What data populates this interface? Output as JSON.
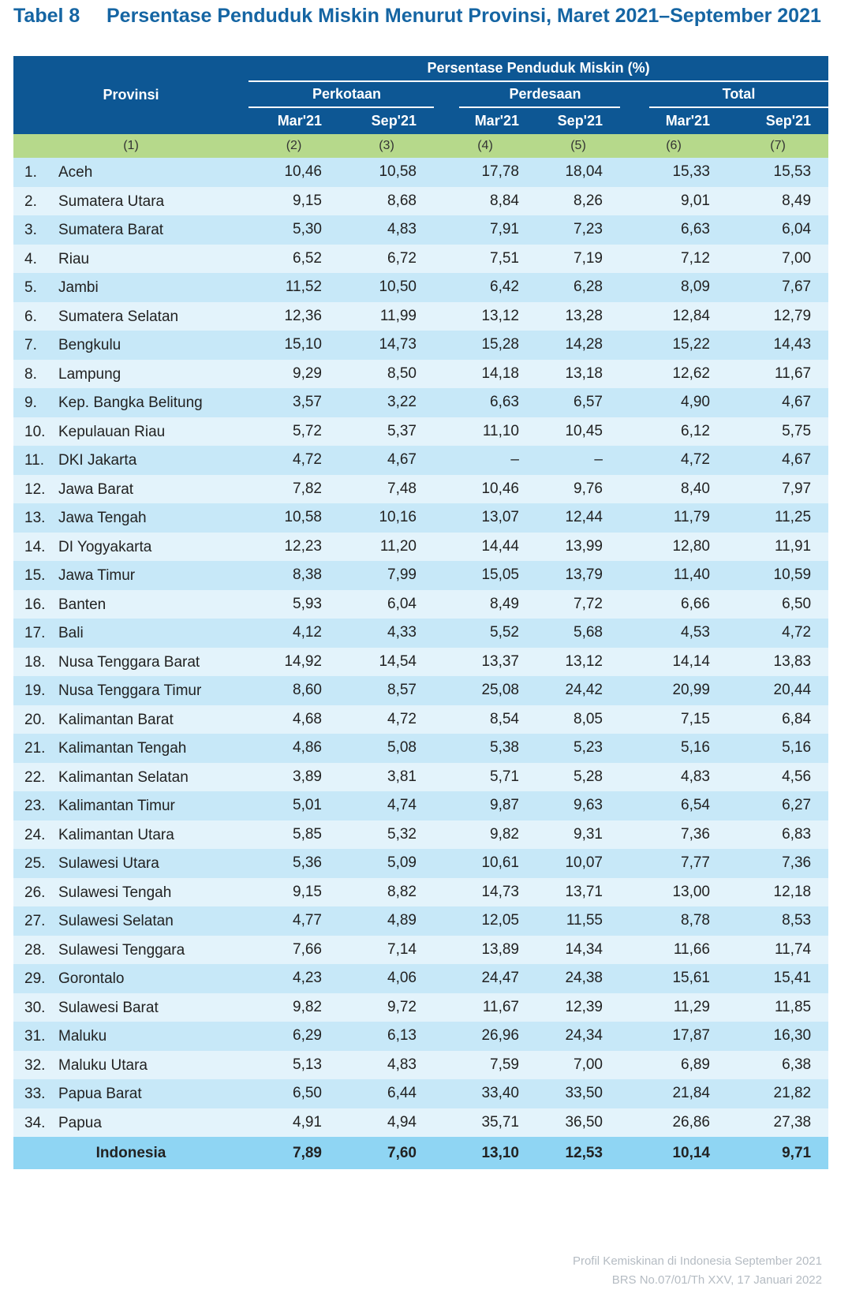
{
  "title": {
    "number": "Tabel 8",
    "text": "Persentase Penduduk Miskin Menurut Provinsi, Maret 2021–September 2021"
  },
  "header": {
    "provinsi": "Provinsi",
    "group": "Persentase Penduduk Miskin (%)",
    "sub": [
      "Perkotaan",
      "Perdesaan",
      "Total"
    ],
    "periods": [
      "Mar'21",
      "Sep'21",
      "Mar'21",
      "Sep'21",
      "Mar'21",
      "Sep'21"
    ],
    "col_numbers": [
      "(1)",
      "(2)",
      "(3)",
      "(4)",
      "(5)",
      "(6)",
      "(7)"
    ]
  },
  "rows": [
    {
      "no": "1.",
      "name": "Aceh",
      "v": [
        "10,46",
        "10,58",
        "17,78",
        "18,04",
        "15,33",
        "15,53"
      ]
    },
    {
      "no": "2.",
      "name": "Sumatera Utara",
      "v": [
        "9,15",
        "8,68",
        "8,84",
        "8,26",
        "9,01",
        "8,49"
      ]
    },
    {
      "no": "3.",
      "name": "Sumatera Barat",
      "v": [
        "5,30",
        "4,83",
        "7,91",
        "7,23",
        "6,63",
        "6,04"
      ]
    },
    {
      "no": "4.",
      "name": "Riau",
      "v": [
        "6,52",
        "6,72",
        "7,51",
        "7,19",
        "7,12",
        "7,00"
      ]
    },
    {
      "no": "5.",
      "name": "Jambi",
      "v": [
        "11,52",
        "10,50",
        "6,42",
        "6,28",
        "8,09",
        "7,67"
      ]
    },
    {
      "no": "6.",
      "name": "Sumatera Selatan",
      "v": [
        "12,36",
        "11,99",
        "13,12",
        "13,28",
        "12,84",
        "12,79"
      ]
    },
    {
      "no": "7.",
      "name": "Bengkulu",
      "v": [
        "15,10",
        "14,73",
        "15,28",
        "14,28",
        "15,22",
        "14,43"
      ]
    },
    {
      "no": "8.",
      "name": "Lampung",
      "v": [
        "9,29",
        "8,50",
        "14,18",
        "13,18",
        "12,62",
        "11,67"
      ]
    },
    {
      "no": "9.",
      "name": "Kep. Bangka Belitung",
      "v": [
        "3,57",
        "3,22",
        "6,63",
        "6,57",
        "4,90",
        "4,67"
      ]
    },
    {
      "no": "10.",
      "name": "Kepulauan Riau",
      "v": [
        "5,72",
        "5,37",
        "11,10",
        "10,45",
        "6,12",
        "5,75"
      ]
    },
    {
      "no": "11.",
      "name": "DKI Jakarta",
      "v": [
        "4,72",
        "4,67",
        "–",
        "–",
        "4,72",
        "4,67"
      ]
    },
    {
      "no": "12.",
      "name": "Jawa Barat",
      "v": [
        "7,82",
        "7,48",
        "10,46",
        "9,76",
        "8,40",
        "7,97"
      ]
    },
    {
      "no": "13.",
      "name": "Jawa Tengah",
      "v": [
        "10,58",
        "10,16",
        "13,07",
        "12,44",
        "11,79",
        "11,25"
      ]
    },
    {
      "no": "14.",
      "name": "DI Yogyakarta",
      "v": [
        "12,23",
        "11,20",
        "14,44",
        "13,99",
        "12,80",
        "11,91"
      ]
    },
    {
      "no": "15.",
      "name": "Jawa Timur",
      "v": [
        "8,38",
        "7,99",
        "15,05",
        "13,79",
        "11,40",
        "10,59"
      ]
    },
    {
      "no": "16.",
      "name": "Banten",
      "v": [
        "5,93",
        "6,04",
        "8,49",
        "7,72",
        "6,66",
        "6,50"
      ]
    },
    {
      "no": "17.",
      "name": "Bali",
      "v": [
        "4,12",
        "4,33",
        "5,52",
        "5,68",
        "4,53",
        "4,72"
      ]
    },
    {
      "no": "18.",
      "name": "Nusa Tenggara Barat",
      "v": [
        "14,92",
        "14,54",
        "13,37",
        "13,12",
        "14,14",
        "13,83"
      ]
    },
    {
      "no": "19.",
      "name": "Nusa Tenggara Timur",
      "v": [
        "8,60",
        "8,57",
        "25,08",
        "24,42",
        "20,99",
        "20,44"
      ]
    },
    {
      "no": "20.",
      "name": "Kalimantan Barat",
      "v": [
        "4,68",
        "4,72",
        "8,54",
        "8,05",
        "7,15",
        "6,84"
      ]
    },
    {
      "no": "21.",
      "name": "Kalimantan Tengah",
      "v": [
        "4,86",
        "5,08",
        "5,38",
        "5,23",
        "5,16",
        "5,16"
      ]
    },
    {
      "no": "22.",
      "name": "Kalimantan Selatan",
      "v": [
        "3,89",
        "3,81",
        "5,71",
        "5,28",
        "4,83",
        "4,56"
      ]
    },
    {
      "no": "23.",
      "name": "Kalimantan Timur",
      "v": [
        "5,01",
        "4,74",
        "9,87",
        "9,63",
        "6,54",
        "6,27"
      ]
    },
    {
      "no": "24.",
      "name": "Kalimantan Utara",
      "v": [
        "5,85",
        "5,32",
        "9,82",
        "9,31",
        "7,36",
        "6,83"
      ]
    },
    {
      "no": "25.",
      "name": "Sulawesi Utara",
      "v": [
        "5,36",
        "5,09",
        "10,61",
        "10,07",
        "7,77",
        "7,36"
      ]
    },
    {
      "no": "26.",
      "name": "Sulawesi Tengah",
      "v": [
        "9,15",
        "8,82",
        "14,73",
        "13,71",
        "13,00",
        "12,18"
      ]
    },
    {
      "no": "27.",
      "name": "Sulawesi Selatan",
      "v": [
        "4,77",
        "4,89",
        "12,05",
        "11,55",
        "8,78",
        "8,53"
      ]
    },
    {
      "no": "28.",
      "name": "Sulawesi Tenggara",
      "v": [
        "7,66",
        "7,14",
        "13,89",
        "14,34",
        "11,66",
        "11,74"
      ]
    },
    {
      "no": "29.",
      "name": "Gorontalo",
      "v": [
        "4,23",
        "4,06",
        "24,47",
        "24,38",
        "15,61",
        "15,41"
      ]
    },
    {
      "no": "30.",
      "name": "Sulawesi Barat",
      "v": [
        "9,82",
        "9,72",
        "11,67",
        "12,39",
        "11,29",
        "11,85"
      ]
    },
    {
      "no": "31.",
      "name": "Maluku",
      "v": [
        "6,29",
        "6,13",
        "26,96",
        "24,34",
        "17,87",
        "16,30"
      ]
    },
    {
      "no": "32.",
      "name": "Maluku Utara",
      "v": [
        "5,13",
        "4,83",
        "7,59",
        "7,00",
        "6,89",
        "6,38"
      ]
    },
    {
      "no": "33.",
      "name": "Papua Barat",
      "v": [
        "6,50",
        "6,44",
        "33,40",
        "33,50",
        "21,84",
        "21,82"
      ]
    },
    {
      "no": "34.",
      "name": "Papua",
      "v": [
        "4,91",
        "4,94",
        "35,71",
        "36,50",
        "26,86",
        "27,38"
      ]
    }
  ],
  "total": {
    "name": "Indonesia",
    "v": [
      "7,89",
      "7,60",
      "13,10",
      "12,53",
      "10,14",
      "9,71"
    ]
  },
  "footer": {
    "line1": "Profil Kemiskinan di Indonesia September 2021",
    "line2": "BRS No.07/01/Th XXV, 17 Januari 2022"
  },
  "colors": {
    "header": "#0d5794",
    "green": "#b6d98b",
    "row_a": "#e3f3fb",
    "row_b": "#c7e8f8",
    "total": "#8fd5f3",
    "title": "#1565a3"
  }
}
